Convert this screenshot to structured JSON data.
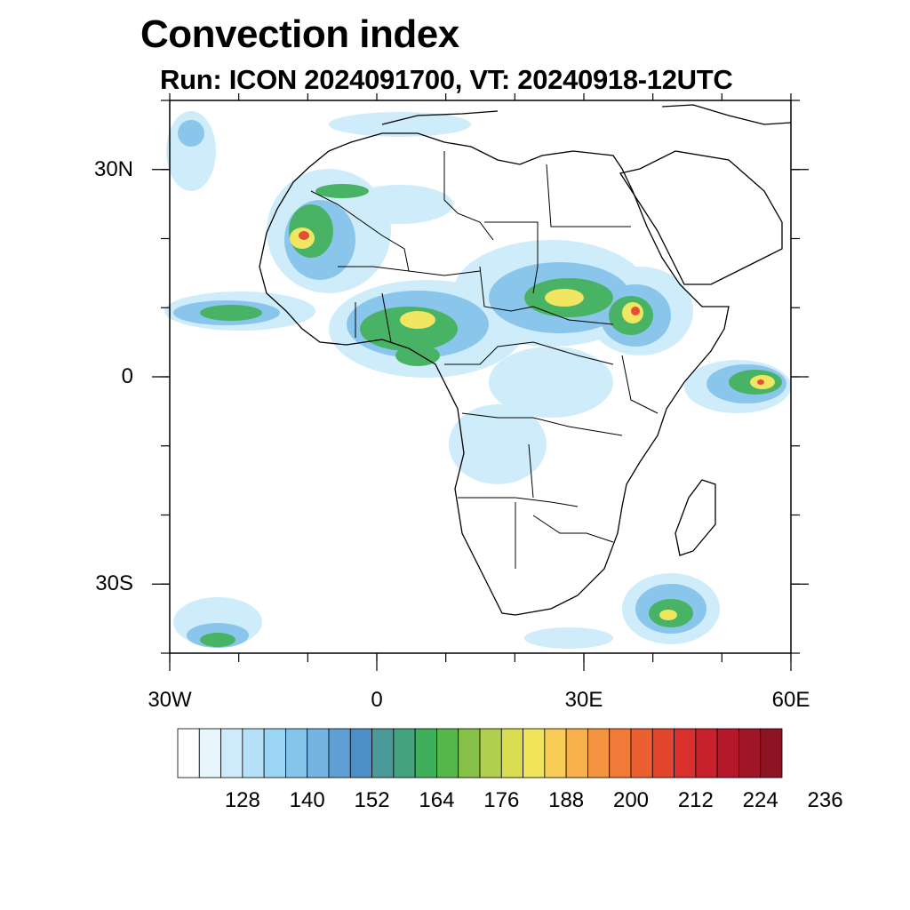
{
  "title": "Convection index",
  "subtitle": "Run: ICON 2024091700,  VT: 20240918-12UTC",
  "map": {
    "lon_range": [
      -30,
      60
    ],
    "lat_range": [
      -40,
      40
    ],
    "lat_ticks": [
      {
        "value": 30,
        "label": "30N"
      },
      {
        "value": 0,
        "label": "0"
      },
      {
        "value": -30,
        "label": "30S"
      }
    ],
    "lon_ticks": [
      {
        "value": -30,
        "label": "30W"
      },
      {
        "value": 0,
        "label": "0"
      },
      {
        "value": 30,
        "label": "30E"
      },
      {
        "value": 60,
        "label": "60E"
      }
    ]
  },
  "colorbar": {
    "colors": [
      "#ffffff",
      "#e8f5fd",
      "#cdebfa",
      "#b4e1f8",
      "#9ad5f5",
      "#84c4ea",
      "#74b3e2",
      "#5f9fd6",
      "#4c8fc6",
      "#4a9a9a",
      "#44a37e",
      "#3faf5c",
      "#55b74a",
      "#86c24a",
      "#b0cf4f",
      "#d8dd52",
      "#f0e55a",
      "#f8cd55",
      "#f7b04a",
      "#f49440",
      "#f07a38",
      "#eb5f30",
      "#e3452d",
      "#d9302c",
      "#c8202c",
      "#b5182a",
      "#a01528",
      "#8e1424"
    ],
    "labels": [
      "128",
      "140",
      "152",
      "164",
      "176",
      "188",
      "200",
      "212",
      "224",
      "236"
    ]
  }
}
